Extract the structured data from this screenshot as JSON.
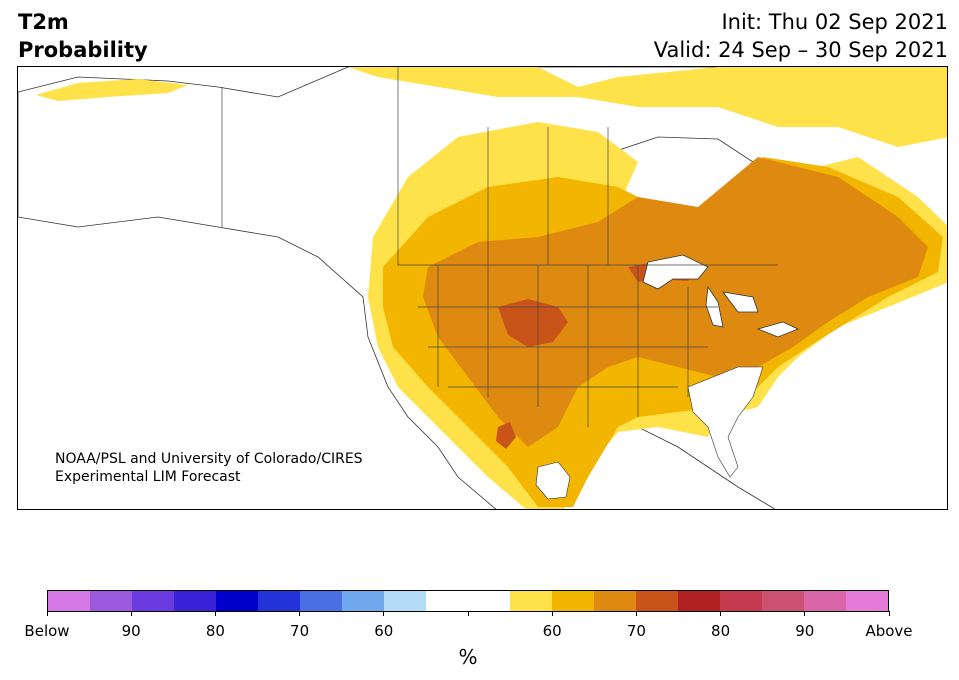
{
  "header": {
    "variable": "T2m",
    "kind": "Probability",
    "init": "Init: Thu 02 Sep 2021",
    "valid": "Valid: 24 Sep – 30 Sep 2021"
  },
  "map": {
    "credit_line1": "NOAA/PSL and University of Colorado/CIRES",
    "credit_line2": "Experimental LIM Forecast"
  },
  "colorbar": {
    "unit": "%",
    "colors": [
      "#d478e6",
      "#9b59dd",
      "#6a3be0",
      "#3a22d8",
      "#0000cc",
      "#2233d8",
      "#4a6fe2",
      "#6fa8ec",
      "#b3dcf9",
      "#ffffff",
      "#ffffff",
      "#ffe14a",
      "#f2b500",
      "#de8a10",
      "#c9541a",
      "#b02222",
      "#c43a4e",
      "#cc5272",
      "#d966a8",
      "#e67ad9"
    ],
    "tick_labels": [
      "Below",
      "90",
      "80",
      "70",
      "60",
      "",
      "60",
      "70",
      "80",
      "90",
      "Above"
    ]
  }
}
